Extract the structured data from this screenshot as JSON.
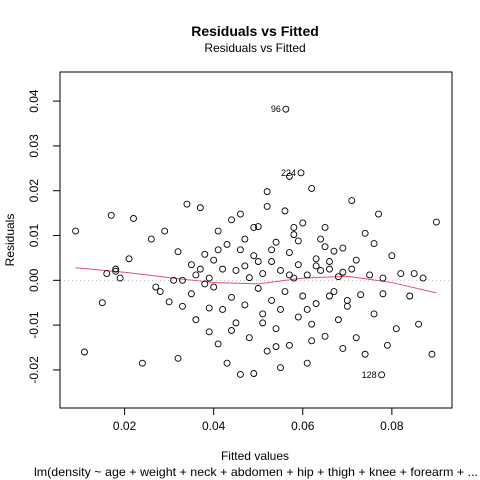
{
  "chart_data": {
    "type": "scatter",
    "title": "Residuals vs Fitted",
    "subtitle": "Residuals vs Fitted",
    "xlabel": "Fitted values",
    "ylabel": "Residuals",
    "caption": "lm(density ~ age + weight + neck + abdomen + hip + thigh + knee + forearm + ...",
    "xlim": [
      0.0055,
      0.0935
    ],
    "ylim": [
      -0.0285,
      0.0465
    ],
    "x_ticks": [
      0.02,
      0.04,
      0.06,
      0.08
    ],
    "x_tick_labels": [
      "0.02",
      "0.04",
      "0.06",
      "0.08"
    ],
    "y_ticks": [
      -0.02,
      -0.01,
      0.0,
      0.01,
      0.02,
      0.03,
      0.04
    ],
    "y_tick_labels": [
      "-0.02",
      "-0.01",
      "0.00",
      "0.01",
      "0.02",
      "0.03",
      "0.04"
    ],
    "reference_line": {
      "y": 0,
      "style": "dotted",
      "color": "#bfbfbf"
    },
    "smooth_line": {
      "color": "#df536b",
      "x": [
        0.009,
        0.02,
        0.03,
        0.04,
        0.05,
        0.06,
        0.07,
        0.08,
        0.09
      ],
      "y": [
        0.0028,
        0.0018,
        0.0006,
        -0.0005,
        -0.0008,
        0.0005,
        0.0009,
        -0.0005,
        -0.0028
      ]
    },
    "labeled_points": [
      {
        "label": "96",
        "x": 0.0562,
        "y": 0.0382
      },
      {
        "label": "224",
        "x": 0.0596,
        "y": 0.024
      },
      {
        "label": "128",
        "x": 0.0777,
        "y": -0.0211
      }
    ],
    "points": [
      [
        0.009,
        0.011
      ],
      [
        0.011,
        -0.016
      ],
      [
        0.015,
        -0.005
      ],
      [
        0.016,
        0.0015
      ],
      [
        0.017,
        0.0145
      ],
      [
        0.018,
        0.0025
      ],
      [
        0.018,
        0.002
      ],
      [
        0.019,
        0.0005
      ],
      [
        0.021,
        0.0048
      ],
      [
        0.022,
        0.0138
      ],
      [
        0.024,
        -0.0185
      ],
      [
        0.026,
        0.0092
      ],
      [
        0.027,
        -0.0015
      ],
      [
        0.028,
        -0.0025
      ],
      [
        0.029,
        0.011
      ],
      [
        0.03,
        -0.0048
      ],
      [
        0.031,
        0.0
      ],
      [
        0.032,
        -0.0174
      ],
      [
        0.032,
        0.0064
      ],
      [
        0.033,
        0.0
      ],
      [
        0.033,
        -0.0058
      ],
      [
        0.034,
        0.017
      ],
      [
        0.035,
        -0.003
      ],
      [
        0.035,
        0.0035
      ],
      [
        0.036,
        0.0012
      ],
      [
        0.036,
        -0.0088
      ],
      [
        0.037,
        0.0025
      ],
      [
        0.037,
        0.0162
      ],
      [
        0.038,
        -0.0008
      ],
      [
        0.038,
        0.0058
      ],
      [
        0.039,
        -0.0115
      ],
      [
        0.039,
        0.0005
      ],
      [
        0.04,
        -0.0015
      ],
      [
        0.04,
        0.0045
      ],
      [
        0.041,
        -0.0142
      ],
      [
        0.041,
        0.011
      ],
      [
        0.042,
        -0.0065
      ],
      [
        0.042,
        0.0025
      ],
      [
        0.043,
        -0.0185
      ],
      [
        0.043,
        0.008
      ],
      [
        0.044,
        -0.0038
      ],
      [
        0.044,
        0.0135
      ],
      [
        0.045,
        0.0022
      ],
      [
        0.045,
        -0.0095
      ],
      [
        0.046,
        0.0148
      ],
      [
        0.046,
        -0.021
      ],
      [
        0.047,
        -0.0055
      ],
      [
        0.047,
        0.0092
      ],
      [
        0.048,
        0.0006
      ],
      [
        0.048,
        -0.0128
      ],
      [
        0.049,
        0.0055
      ],
      [
        0.049,
        -0.0208
      ],
      [
        0.05,
        -0.0018
      ],
      [
        0.05,
        0.012
      ],
      [
        0.051,
        -0.0075
      ],
      [
        0.051,
        0.0015
      ],
      [
        0.052,
        0.0165
      ],
      [
        0.052,
        -0.0158
      ],
      [
        0.052,
        0.0198
      ],
      [
        0.053,
        0.0042
      ],
      [
        0.053,
        -0.0045
      ],
      [
        0.054,
        0.0085
      ],
      [
        0.054,
        -0.0108
      ],
      [
        0.055,
        0.0022
      ],
      [
        0.055,
        -0.0195
      ],
      [
        0.056,
        0.0155
      ],
      [
        0.056,
        -0.0025
      ],
      [
        0.057,
        0.0062
      ],
      [
        0.057,
        -0.0145
      ],
      [
        0.058,
        0.0005
      ],
      [
        0.058,
        0.0102
      ],
      [
        0.059,
        -0.0082
      ],
      [
        0.059,
        0.0035
      ],
      [
        0.06,
        -0.0035
      ],
      [
        0.06,
        0.0128
      ],
      [
        0.061,
        -0.0185
      ],
      [
        0.061,
        0.0012
      ],
      [
        0.062,
        0.0205
      ],
      [
        0.062,
        -0.0098
      ],
      [
        0.063,
        0.0048
      ],
      [
        0.063,
        -0.0052
      ],
      [
        0.064,
        0.0092
      ],
      [
        0.064,
        0.0022
      ],
      [
        0.065,
        -0.0125
      ],
      [
        0.065,
        0.0118
      ],
      [
        0.066,
        -0.0035
      ],
      [
        0.066,
        0.0025
      ],
      [
        0.067,
        0.0065
      ],
      [
        0.068,
        -0.0088
      ],
      [
        0.068,
        0.0008
      ],
      [
        0.069,
        -0.0152
      ],
      [
        0.069,
        0.0072
      ],
      [
        0.07,
        -0.0058
      ],
      [
        0.071,
        0.0178
      ],
      [
        0.071,
        0.0025
      ],
      [
        0.072,
        -0.0128
      ],
      [
        0.072,
        0.0045
      ],
      [
        0.073,
        -0.0032
      ],
      [
        0.074,
        0.0105
      ],
      [
        0.074,
        -0.0165
      ],
      [
        0.075,
        0.0012
      ],
      [
        0.076,
        -0.0075
      ],
      [
        0.076,
        0.0082
      ],
      [
        0.077,
        0.0148
      ],
      [
        0.078,
        -0.003
      ],
      [
        0.078,
        0.0005
      ],
      [
        0.079,
        -0.0145
      ],
      [
        0.08,
        0.0055
      ],
      [
        0.081,
        -0.0108
      ],
      [
        0.082,
        0.0015
      ],
      [
        0.084,
        -0.0035
      ],
      [
        0.085,
        0.0015
      ],
      [
        0.086,
        -0.0098
      ],
      [
        0.087,
        0.0005
      ],
      [
        0.089,
        -0.0165
      ],
      [
        0.09,
        0.013
      ],
      [
        0.047,
        0.0032
      ],
      [
        0.049,
        0.0118
      ],
      [
        0.051,
        -0.0095
      ],
      [
        0.053,
        0.0068
      ],
      [
        0.055,
        -0.0065
      ],
      [
        0.057,
        0.0012
      ],
      [
        0.059,
        0.0088
      ],
      [
        0.061,
        -0.0065
      ],
      [
        0.063,
        0.0032
      ],
      [
        0.065,
        0.0075
      ],
      [
        0.067,
        -0.0025
      ],
      [
        0.069,
        0.0018
      ],
      [
        0.044,
        -0.0112
      ],
      [
        0.046,
        0.0068
      ],
      [
        0.05,
        0.0042
      ],
      [
        0.054,
        -0.0148
      ],
      [
        0.058,
        0.0118
      ],
      [
        0.062,
        -0.0135
      ],
      [
        0.066,
        0.0042
      ],
      [
        0.07,
        -0.0045
      ],
      [
        0.041,
        0.0068
      ],
      [
        0.039,
        -0.0062
      ],
      [
        0.057,
        0.0232
      ]
    ]
  }
}
